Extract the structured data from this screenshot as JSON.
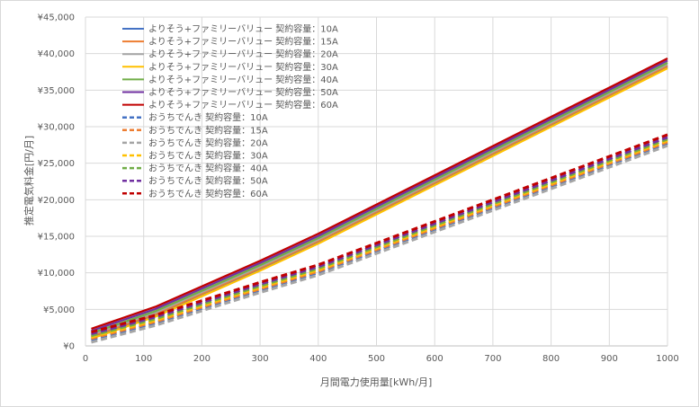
{
  "chart_data": {
    "type": "line",
    "xlabel": "月間電力使用量[kWh/月]",
    "ylabel": "推定電気料金[円/月]",
    "xlim": [
      0,
      1000
    ],
    "ylim": [
      0,
      45000
    ],
    "x_ticks": [
      "0",
      "100",
      "200",
      "300",
      "400",
      "500",
      "600",
      "700",
      "800",
      "900",
      "1000"
    ],
    "y_ticks": [
      "¥0",
      "¥5,000",
      "¥10,000",
      "¥15,000",
      "¥20,000",
      "¥25,000",
      "¥30,000",
      "¥35,000",
      "¥40,000",
      "¥45,000"
    ],
    "grid": "vertical and horizontal",
    "legend_position": "top-left",
    "x": [
      10,
      120,
      300,
      400,
      1000
    ],
    "series": [
      {
        "name": "よりそう+ファミリーバリュー 契約容量：10A",
        "color": "#4472C4",
        "dash": "solid",
        "values": [
          1200,
          4200,
          10500,
          14200,
          38200
        ]
      },
      {
        "name": "よりそう+ファミリーバリュー 契約容量：15A",
        "color": "#ED7D31",
        "dash": "solid",
        "values": [
          1350,
          4350,
          10650,
          14350,
          38350
        ]
      },
      {
        "name": "よりそう+ファミリーバリュー 契約容量：20A",
        "color": "#A5A5A5",
        "dash": "solid",
        "values": [
          1550,
          4550,
          10850,
          14550,
          38550
        ]
      },
      {
        "name": "よりそう+ファミリーバリュー 契約容量：30A",
        "color": "#FFC000",
        "dash": "solid",
        "values": [
          1000,
          4000,
          10300,
          14000,
          38000
        ]
      },
      {
        "name": "よりそう+ファミリーバリュー 契約容量：40A",
        "color": "#70AD47",
        "dash": "solid",
        "values": [
          1750,
          4750,
          11050,
          14750,
          38750
        ]
      },
      {
        "name": "よりそう+ファミリーバリュー 契約容量：50A",
        "color": "#7030A0",
        "dash": "solid",
        "values": [
          2050,
          5050,
          11350,
          15050,
          39050
        ]
      },
      {
        "name": "よりそう+ファミリーバリュー 契約容量：60A",
        "color": "#C00000",
        "dash": "solid",
        "values": [
          2350,
          5350,
          11650,
          15350,
          39350
        ]
      },
      {
        "name": "おうちでんき 契約容量：10A",
        "color": "#4472C4",
        "dash": "dashed",
        "values": [
          800,
          3100,
          7600,
          10000,
          27700
        ]
      },
      {
        "name": "おうちでんき 契約容量：15A",
        "color": "#ED7D31",
        "dash": "dashed",
        "values": [
          1000,
          3300,
          7800,
          10200,
          27900
        ]
      },
      {
        "name": "おうちでんき 契約容量：20A",
        "color": "#A5A5A5",
        "dash": "dashed",
        "values": [
          500,
          2800,
          7300,
          9700,
          27400
        ]
      },
      {
        "name": "おうちでんき 契約容量：30A",
        "color": "#FFC000",
        "dash": "dashed",
        "values": [
          1200,
          3500,
          8000,
          10400,
          28100
        ]
      },
      {
        "name": "おうちでんき 契約容量：40A",
        "color": "#70AD47",
        "dash": "dashed",
        "values": [
          1400,
          3700,
          8200,
          10600,
          28300
        ]
      },
      {
        "name": "おうちでんき 契約容量：50A",
        "color": "#7030A0",
        "dash": "dashed",
        "values": [
          1650,
          3950,
          8450,
          10850,
          28550
        ]
      },
      {
        "name": "おうちでんき 契約容量：60A",
        "color": "#C00000",
        "dash": "dashed",
        "values": [
          1900,
          4200,
          8700,
          11100,
          28900
        ]
      }
    ]
  }
}
